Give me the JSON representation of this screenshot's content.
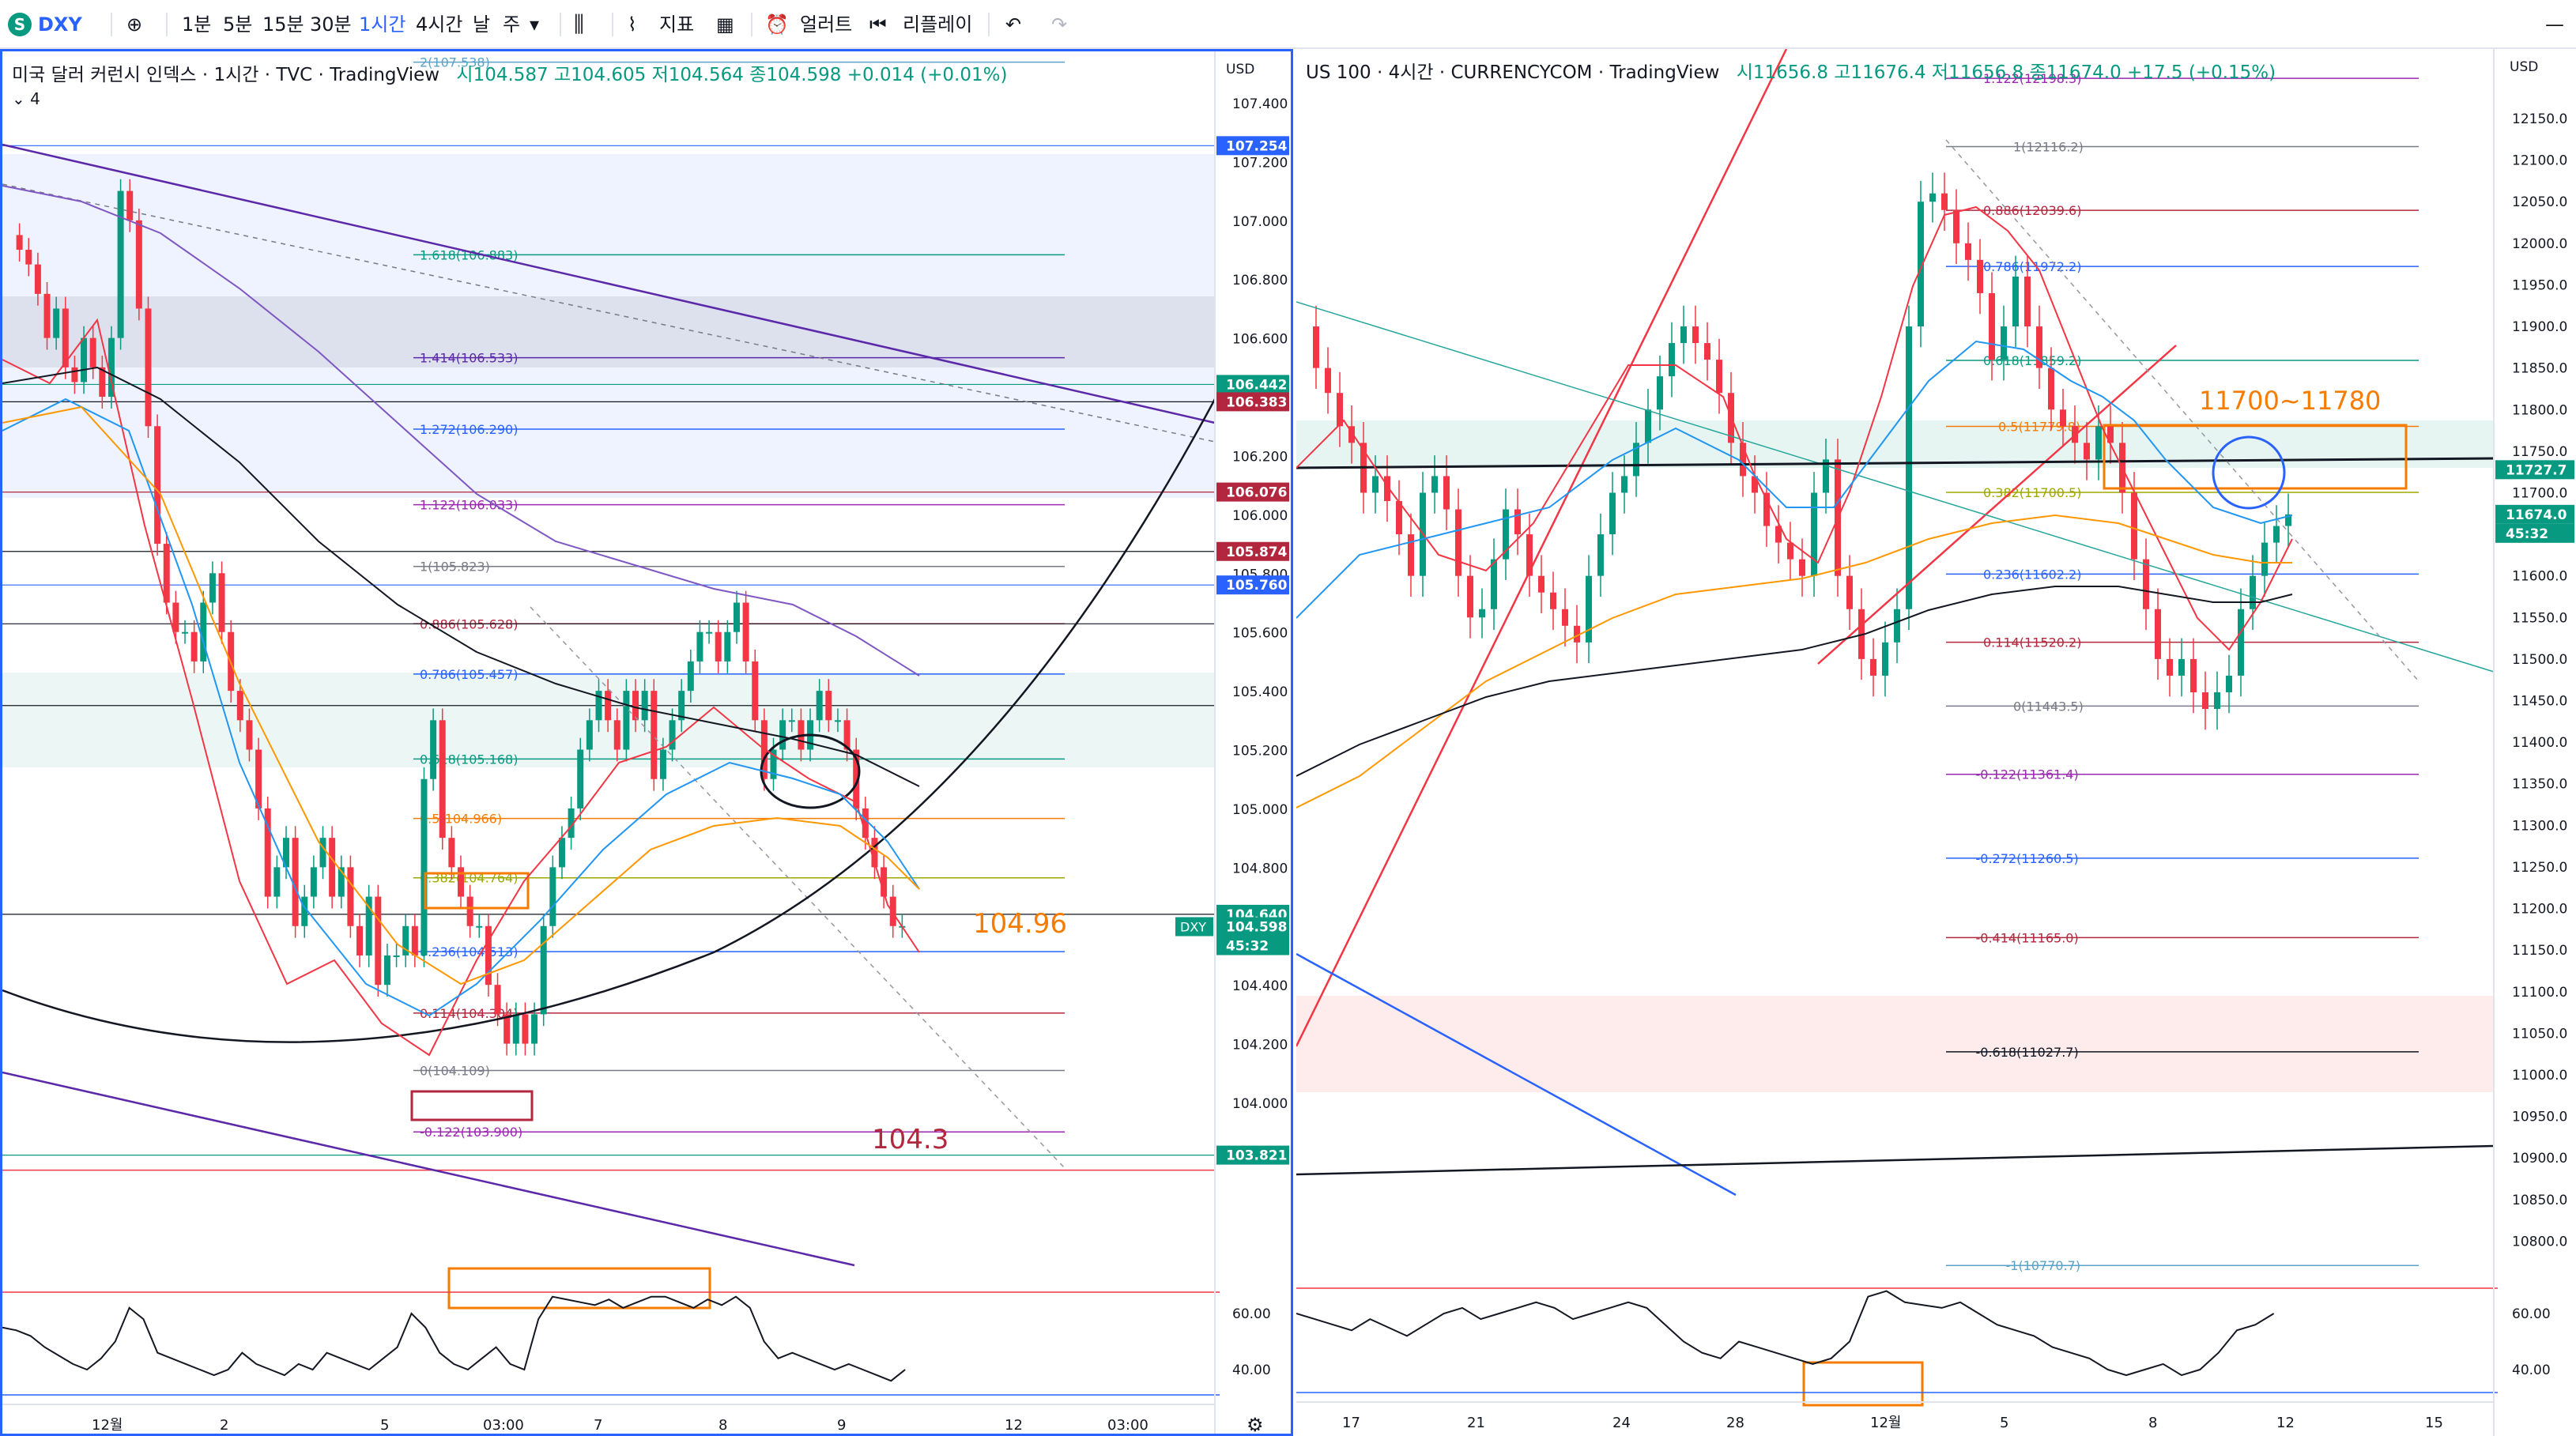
{
  "toolbar": {
    "symbol": "DXY",
    "intervals": [
      "1분",
      "5분",
      "15분",
      "30분",
      "1시간",
      "4시간",
      "날",
      "주"
    ],
    "active_interval": "1시간",
    "indicators_label": "지표",
    "alert_label": "얼러트",
    "replay_label": "리플레이"
  },
  "left": {
    "title": "미국 달러 커런시 인덱스 · 1시간 · TVC · TradingView",
    "ohlc": "시104.587 고104.605 저104.564 종104.598 +0.014 (+0.01%)",
    "indicator_count": "4",
    "currency": "USD",
    "price_ticks": [
      "107.400",
      "107.200",
      "107.000",
      "106.800",
      "106.600",
      "106.400",
      "106.200",
      "106.000",
      "105.800",
      "105.600",
      "105.400",
      "105.200",
      "105.000",
      "104.800",
      "104.600",
      "104.400",
      "104.200",
      "104.000"
    ],
    "price_labels": [
      {
        "text": "107.254",
        "color": "#2962ff"
      },
      {
        "text": "106.442",
        "color": "#089981"
      },
      {
        "text": "106.383",
        "color": "#b2273e"
      },
      {
        "text": "106.076",
        "color": "#b2273e"
      },
      {
        "text": "105.874",
        "color": "#b2273e"
      },
      {
        "text": "105.760",
        "color": "#2962ff"
      },
      {
        "text": "104.640",
        "color": "#089981"
      },
      {
        "text": "104.598",
        "color": "#089981"
      },
      {
        "text": "45:32",
        "color": "#089981"
      },
      {
        "text": "103.821",
        "color": "#089981"
      }
    ],
    "symbol_tag": "DXY",
    "fib_levels": [
      {
        "label": "2(107.538)",
        "color": "#5ba2c9"
      },
      {
        "label": "1.618(106.883)",
        "color": "#089981"
      },
      {
        "label": "1.414(106.533)",
        "color": "#5a28a8"
      },
      {
        "label": "1.272(106.290)",
        "color": "#2962ff"
      },
      {
        "label": "1.122(106.033)",
        "color": "#9c27b0"
      },
      {
        "label": "1(105.823)",
        "color": "#787b86"
      },
      {
        "label": "0.886(105.628)",
        "color": "#b2273e"
      },
      {
        "label": "0.786(105.457)",
        "color": "#2962ff"
      },
      {
        "label": "0.618(105.168)",
        "color": "#089981"
      },
      {
        "label": "0.5(104.966)",
        "color": "#f57c00"
      },
      {
        "label": "0.382(104.764)",
        "color": "#9fa800"
      },
      {
        "label": "0.236(104.513)",
        "color": "#2962ff"
      },
      {
        "label": "0.114(104.304)",
        "color": "#b2273e"
      },
      {
        "label": "0(104.109)",
        "color": "#787b86"
      },
      {
        "label": "-0.122(103.900)",
        "color": "#9c27b0"
      }
    ],
    "annotations": [
      "104.96",
      "104.3"
    ],
    "rsi_ticks": [
      "60.00",
      "40.00"
    ],
    "time_ticks": [
      "12월",
      "2",
      "5",
      "03:00",
      "7",
      "8",
      "9",
      "12",
      "03:00"
    ]
  },
  "right": {
    "title": "US 100 · 4시간 · CURRENCYCOM · TradingView",
    "ohlc": "시11656.8 고11676.4 저11656.8 종11674.0 +17.5 (+0.15%)",
    "currency": "USD",
    "price_ticks": [
      "12150.0",
      "12100.0",
      "12050.0",
      "12000.0",
      "11950.0",
      "11900.0",
      "11850.0",
      "11800.0",
      "11750.0",
      "11700.0",
      "11650.0",
      "11600.0",
      "11550.0",
      "11500.0",
      "11450.0",
      "11400.0",
      "11350.0",
      "11300.0",
      "11250.0",
      "11200.0",
      "11150.0",
      "11100.0",
      "11050.0",
      "11000.0",
      "10950.0",
      "10900.0",
      "10850.0",
      "10800.0"
    ],
    "price_labels": [
      {
        "text": "11727.7",
        "color": "#089981"
      },
      {
        "text": "11674.0",
        "color": "#089981"
      },
      {
        "text": "45:32",
        "color": "#089981"
      }
    ],
    "fib_levels": [
      {
        "label": "1.122(12198.3)",
        "color": "#9c27b0"
      },
      {
        "label": "1(12116.2)",
        "color": "#787b86"
      },
      {
        "label": "0.886(12039.6)",
        "color": "#b2273e"
      },
      {
        "label": "0.786(11972.2)",
        "color": "#2962ff"
      },
      {
        "label": "0.618(11859.2)",
        "color": "#089981"
      },
      {
        "label": "0.5(11779.8)",
        "color": "#f57c00"
      },
      {
        "label": "0.382(11700.5)",
        "color": "#9fa800"
      },
      {
        "label": "0.236(11602.2)",
        "color": "#2962ff"
      },
      {
        "label": "0.114(11520.2)",
        "color": "#b2273e"
      },
      {
        "label": "0(11443.5)",
        "color": "#787b86"
      },
      {
        "label": "-0.122(11361.4)",
        "color": "#9c27b0"
      },
      {
        "label": "-0.272(11260.5)",
        "color": "#2962ff"
      },
      {
        "label": "-0.414(11165.0)",
        "color": "#b2273e"
      },
      {
        "label": "-0.618(11027.7)",
        "color": "#131722"
      },
      {
        "label": "-1(10770.7)",
        "color": "#5ba2c9"
      }
    ],
    "annotations": [
      "11700~11780"
    ],
    "rsi_ticks": [
      "60.00",
      "40.00"
    ],
    "time_ticks": [
      "17",
      "21",
      "24",
      "28",
      "12월",
      "5",
      "8",
      "12",
      "15"
    ]
  }
}
